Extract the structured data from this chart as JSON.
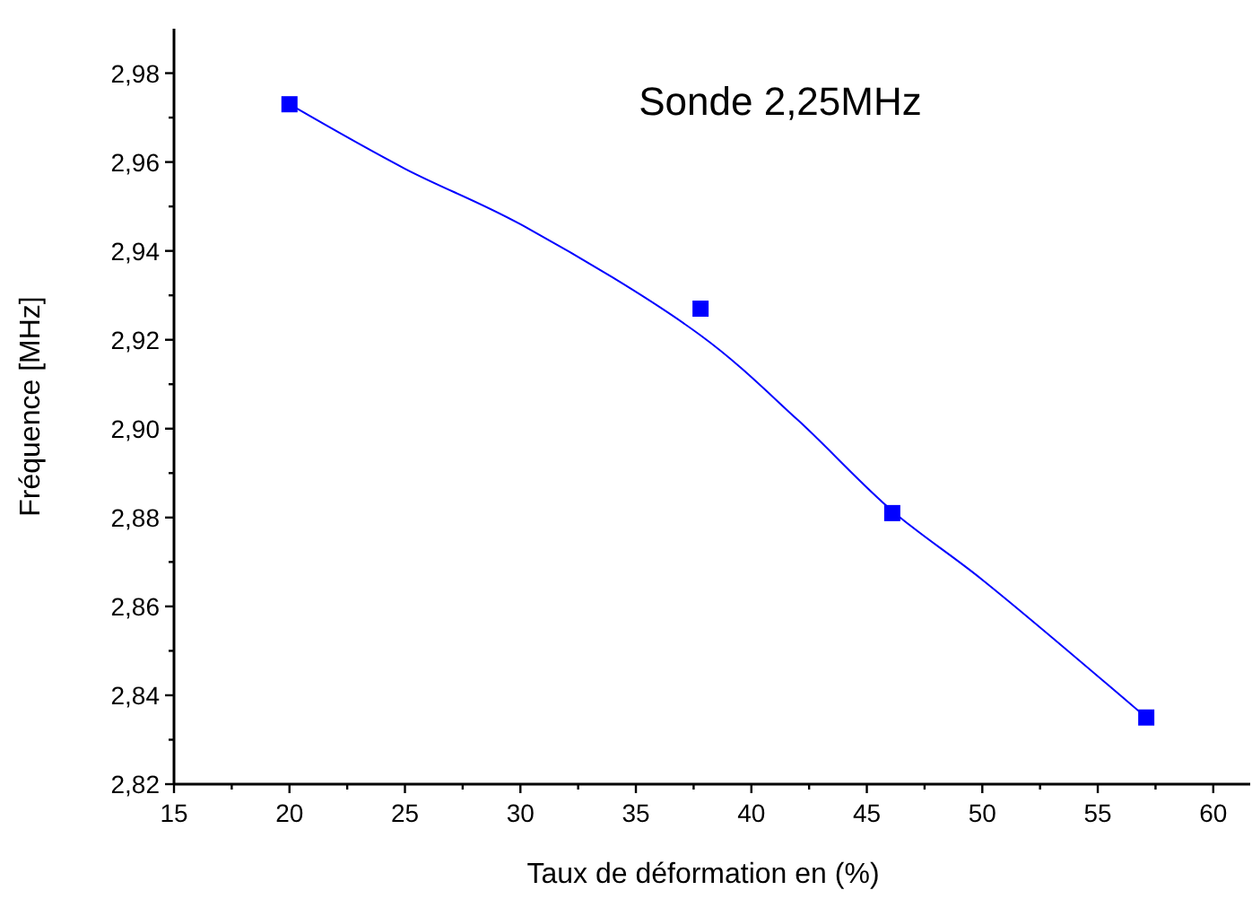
{
  "chart_data": {
    "type": "scatter",
    "title": "Sonde 2,25MHz",
    "xlabel": "Taux de déformation en (%)",
    "ylabel": "Fréquence [MHz]",
    "xlim": [
      15,
      61.6
    ],
    "ylim": [
      2.82,
      2.99
    ],
    "xticks": [
      15,
      {
        "value": 17.5,
        "label": null
      },
      20,
      {
        "value": 22.5,
        "label": null
      },
      25,
      {
        "value": 27.5,
        "label": null
      },
      30,
      {
        "value": 32.5,
        "label": null
      },
      35,
      {
        "value": 37.5,
        "label": null
      },
      40,
      {
        "value": 42.5,
        "label": null
      },
      45,
      {
        "value": 47.5,
        "label": null
      },
      50,
      {
        "value": 52.5,
        "label": null
      },
      55,
      {
        "value": 57.5,
        "label": null
      },
      60
    ],
    "yticks": [
      {
        "value": 2.82,
        "label": "2,82"
      },
      {
        "value": 2.83,
        "label": null
      },
      {
        "value": 2.84,
        "label": "2,84"
      },
      {
        "value": 2.85,
        "label": null
      },
      {
        "value": 2.86,
        "label": "2,86"
      },
      {
        "value": 2.87,
        "label": null
      },
      {
        "value": 2.88,
        "label": "2,88"
      },
      {
        "value": 2.89,
        "label": null
      },
      {
        "value": 2.9,
        "label": "2,90"
      },
      {
        "value": 2.91,
        "label": null
      },
      {
        "value": 2.92,
        "label": "2,92"
      },
      {
        "value": 2.93,
        "label": null
      },
      {
        "value": 2.94,
        "label": "2,94"
      },
      {
        "value": 2.95,
        "label": null
      },
      {
        "value": 2.96,
        "label": "2,96"
      },
      {
        "value": 2.97,
        "label": null
      },
      {
        "value": 2.98,
        "label": "2,98"
      }
    ],
    "grid": false,
    "marker": "square",
    "series": [
      {
        "color": "#0000ff",
        "x": [
          20,
          37.8,
          46.1,
          57.1
        ],
        "values": [
          2.973,
          2.927,
          2.881,
          2.835
        ]
      },
      {
        "type": "line",
        "color": "#0000ff",
        "marker": "none",
        "line_style": "solid",
        "x": [
          20,
          25,
          30,
          37.8,
          42,
          46.1,
          50,
          57.1
        ],
        "values": [
          2.973,
          2.9585,
          2.946,
          2.921,
          2.902,
          2.8815,
          2.866,
          2.835
        ]
      }
    ]
  }
}
